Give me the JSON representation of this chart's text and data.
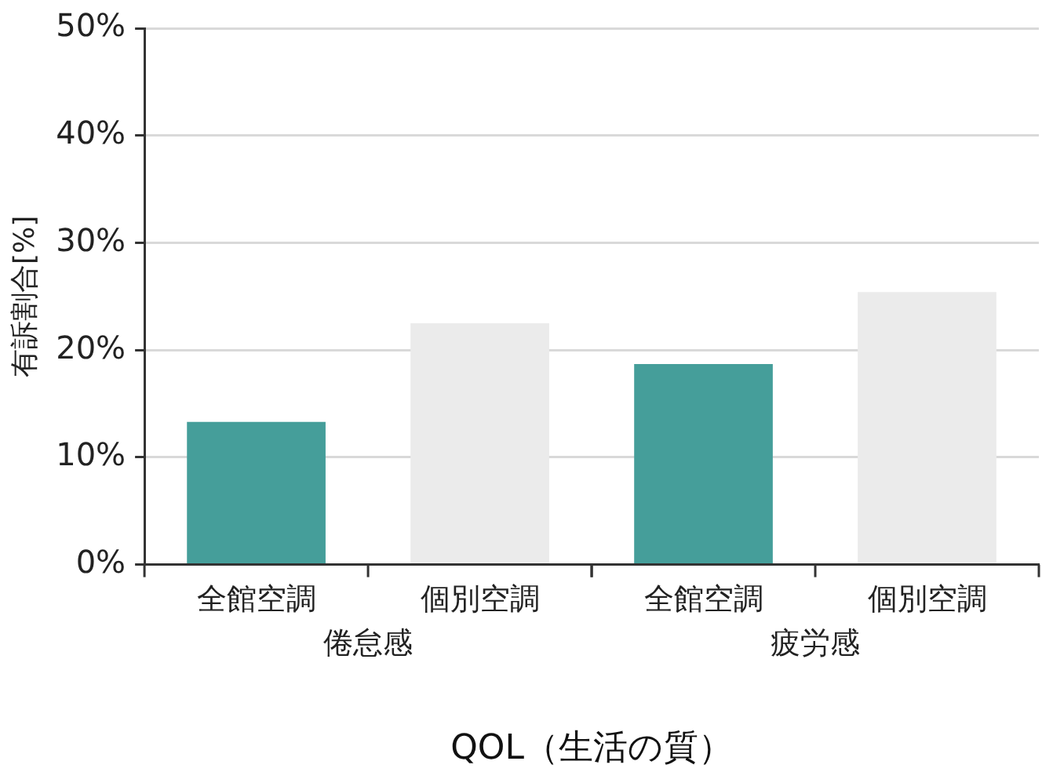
{
  "chart_data": {
    "type": "bar",
    "xlabel": "QOL（生活の質）",
    "ylabel": "有訴割合[%]",
    "categories": [
      "倦怠感",
      "疲労感"
    ],
    "series": [
      {
        "name": "全館空調",
        "color": "#459e9a",
        "values": [
          13.3,
          18.7
        ]
      },
      {
        "name": "個別空調",
        "color": "#ebebeb",
        "values": [
          22.5,
          25.4
        ]
      }
    ],
    "ylim": [
      0,
      50
    ],
    "yticks": [
      {
        "value": 0,
        "label": "0%"
      },
      {
        "value": 10,
        "label": "10%"
      },
      {
        "value": 20,
        "label": "20%"
      },
      {
        "value": 30,
        "label": "30%"
      },
      {
        "value": 40,
        "label": "40%"
      },
      {
        "value": 50,
        "label": "50%"
      }
    ],
    "grid": "y",
    "legend": false
  }
}
